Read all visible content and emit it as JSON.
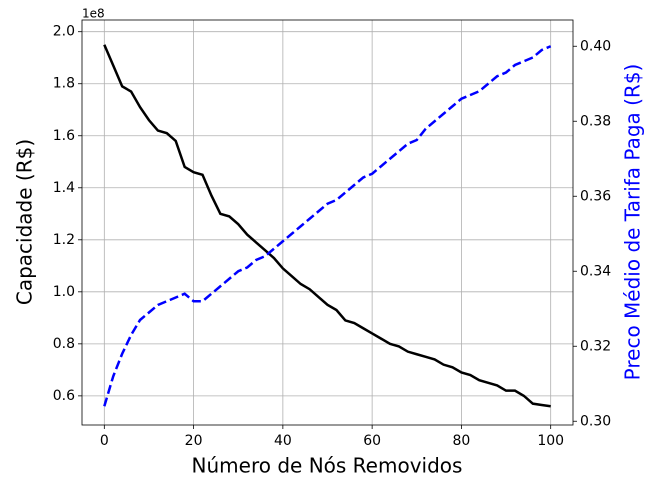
{
  "chart_data": {
    "type": "line",
    "x_label": "Número de Nós Removidos",
    "y_label": "Capacidade (R$)",
    "y2_label": "Preco Médio de Tarifa Paga (R$)",
    "y_offset_label": "1e8",
    "x": [
      0,
      2,
      4,
      6,
      8,
      10,
      12,
      14,
      16,
      18,
      20,
      22,
      24,
      26,
      28,
      30,
      32,
      34,
      36,
      38,
      40,
      42,
      44,
      46,
      48,
      50,
      52,
      54,
      56,
      58,
      60,
      62,
      64,
      66,
      68,
      70,
      72,
      74,
      76,
      78,
      80,
      82,
      84,
      86,
      88,
      90,
      92,
      94,
      96,
      98,
      100
    ],
    "series": [
      {
        "name": "Capacidade",
        "color": "#000000",
        "dash": "solid",
        "axis": "y",
        "values": [
          1.95,
          1.87,
          1.79,
          1.77,
          1.71,
          1.66,
          1.62,
          1.61,
          1.58,
          1.48,
          1.46,
          1.45,
          1.37,
          1.3,
          1.29,
          1.26,
          1.22,
          1.19,
          1.16,
          1.13,
          1.09,
          1.06,
          1.03,
          1.01,
          0.98,
          0.95,
          0.93,
          0.89,
          0.88,
          0.86,
          0.84,
          0.82,
          0.8,
          0.79,
          0.77,
          0.76,
          0.75,
          0.74,
          0.72,
          0.71,
          0.69,
          0.68,
          0.66,
          0.65,
          0.64,
          0.62,
          0.62,
          0.6,
          0.57,
          0.565,
          0.56
        ]
      },
      {
        "name": "Preco Médio",
        "color": "#0000ff",
        "dash": "dashed",
        "axis": "y2",
        "values": [
          0.304,
          0.312,
          0.318,
          0.323,
          0.327,
          0.329,
          0.331,
          0.332,
          0.333,
          0.334,
          0.332,
          0.332,
          0.334,
          0.336,
          0.338,
          0.34,
          0.341,
          0.343,
          0.344,
          0.346,
          0.348,
          0.35,
          0.352,
          0.354,
          0.356,
          0.358,
          0.359,
          0.361,
          0.363,
          0.365,
          0.366,
          0.368,
          0.37,
          0.372,
          0.374,
          0.375,
          0.378,
          0.38,
          0.382,
          0.384,
          0.386,
          0.387,
          0.388,
          0.39,
          0.392,
          0.393,
          0.395,
          0.396,
          0.397,
          0.399,
          0.4
        ]
      }
    ],
    "xlim": [
      -5,
      105
    ],
    "xticks": [
      0,
      20,
      40,
      60,
      80,
      100
    ],
    "ylim": [
      0.488,
      2.045
    ],
    "yticks": [
      0.6,
      0.8,
      {
        "value": 1,
        "label": "1.0"
      },
      1.2,
      1.4,
      1.6,
      1.8,
      {
        "value": 2,
        "label": "2.0"
      }
    ],
    "y2lim": [
      0.299,
      0.407
    ],
    "y2ticks": [
      {
        "value": 0.3,
        "label": "0.30"
      },
      0.32,
      0.34,
      0.36,
      0.38,
      {
        "value": 0.4,
        "label": "0.40"
      }
    ],
    "y2_color": "#0000ff",
    "grid": true
  }
}
